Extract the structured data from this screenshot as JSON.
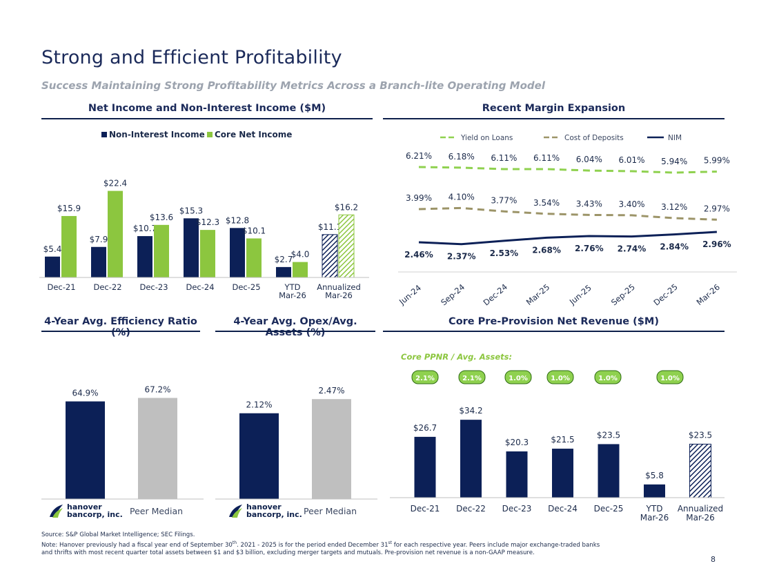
{
  "title": "Strong and Efficient Profitability",
  "subtitle": "Success Maintaining Strong Profitability Metrics Across a Branch-lite Operating Model",
  "page_number": "8",
  "colors": {
    "navy": "#0c2057",
    "green": "#8cc63f",
    "olive": "#9c9468",
    "gray": "#bfbfbf",
    "lightgreen": "#8fd14f"
  },
  "footnote": {
    "source": "Source: S&P Global Market Intelligence; SEC Filings.",
    "note_a": "Note: Hanover previously had a fiscal year end of September 30",
    "sup1": "th",
    "note_b": ". 2021 - 2025 is for the period ended December 31",
    "sup2": "st",
    "note_c": " for each respective year. Peers include major exchange-traded banks and thrifts with most recent quarter total assets between $1 and $3 billion, excluding merger targets and mutuals. Pre-provision net revenue is a non-GAAP measure."
  },
  "logo": {
    "line1": "hanover",
    "line2": "bancorp, inc."
  },
  "peer_label": "Peer Median",
  "chart_data": [
    {
      "type": "bar",
      "title": "Net Income and Non-Interest Income ($M)",
      "categories": [
        "Dec-21",
        "Dec-22",
        "Dec-23",
        "Dec-24",
        "Dec-25",
        "YTD Mar-26",
        "Annualized Mar-26"
      ],
      "series": [
        {
          "name": "Non-Interest Income",
          "values": [
            5.4,
            7.9,
            10.7,
            15.3,
            12.8,
            2.7,
            11.1
          ],
          "labels": [
            "$5.4",
            "$7.9",
            "$10.7",
            "$15.3",
            "$12.8",
            "$2.7",
            "$11.1"
          ]
        },
        {
          "name": "Core Net Income",
          "values": [
            15.9,
            22.4,
            13.6,
            12.3,
            10.1,
            4.0,
            16.2
          ],
          "labels": [
            "$15.9",
            "$22.4",
            "$13.6",
            "$12.3",
            "$10.1",
            "$4.0",
            "$16.2"
          ]
        }
      ],
      "legend": "top"
    },
    {
      "type": "line",
      "title": "Recent Margin Expansion",
      "x": [
        "Jun-24",
        "Sep-24",
        "Dec-24",
        "Mar-25",
        "Jun-25",
        "Sep-25",
        "Dec-25",
        "Mar-26"
      ],
      "series": [
        {
          "name": "Yield on Loans",
          "values": [
            6.21,
            6.18,
            6.11,
            6.11,
            6.04,
            6.01,
            5.94,
            5.99
          ],
          "labels": [
            "6.21%",
            "6.18%",
            "6.11%",
            "6.11%",
            "6.04%",
            "6.01%",
            "5.94%",
            "5.99%"
          ]
        },
        {
          "name": "Cost of Deposits",
          "values": [
            3.99,
            4.1,
            3.77,
            3.54,
            3.43,
            3.4,
            3.12,
            2.97
          ],
          "labels": [
            "3.99%",
            "4.10%",
            "3.77%",
            "3.54%",
            "3.43%",
            "3.40%",
            "3.12%",
            "2.97%"
          ]
        },
        {
          "name": "NIM",
          "values": [
            2.46,
            2.37,
            2.53,
            2.68,
            2.76,
            2.74,
            2.84,
            2.96
          ],
          "labels": [
            "2.46%",
            "2.37%",
            "2.53%",
            "2.68%",
            "2.76%",
            "2.74%",
            "2.84%",
            "2.96%"
          ]
        }
      ],
      "legend": "top"
    },
    {
      "type": "bar",
      "title": "4-Year Avg. Efficiency Ratio (%)",
      "categories": [
        "Hanover",
        "Peer Median"
      ],
      "values": [
        64.9,
        67.2
      ],
      "labels": [
        "64.9%",
        "67.2%"
      ]
    },
    {
      "type": "bar",
      "title": "4-Year Avg. Opex/Avg. Assets (%)",
      "categories": [
        "Hanover",
        "Peer Median"
      ],
      "values": [
        2.12,
        2.47
      ],
      "labels": [
        "2.12%",
        "2.47%"
      ]
    },
    {
      "type": "bar",
      "title": "Core Pre-Provision Net Revenue ($M)",
      "annotation_label": "Core PPNR / Avg. Assets:",
      "badges": [
        "2.1%",
        "2.1%",
        "1.0%",
        "1.0%",
        "1.0%",
        "1.0%"
      ],
      "categories": [
        "Dec-21",
        "Dec-22",
        "Dec-23",
        "Dec-24",
        "Dec-25",
        "YTD Mar-26",
        "Annualized Mar-26"
      ],
      "values": [
        26.7,
        34.2,
        20.3,
        21.5,
        23.5,
        5.8,
        23.5
      ],
      "labels": [
        "$26.7",
        "$34.2",
        "$20.3",
        "$21.5",
        "$23.5",
        "$5.8",
        "$23.5"
      ]
    }
  ]
}
